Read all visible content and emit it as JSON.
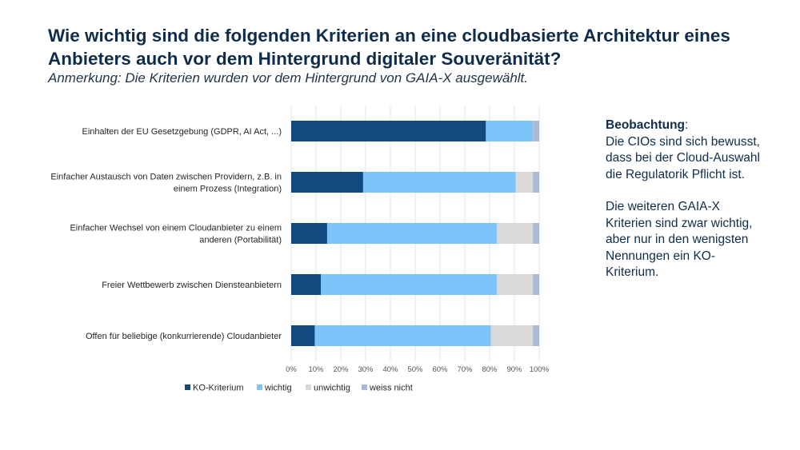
{
  "title": "Wie wichtig sind die folgenden Kriterien an eine cloudbasierte Architektur eines Anbieters auch vor dem Hintergrund digitaler Souveränität?",
  "subtitle": "Anmerkung: Die Kriterien wurden vor dem Hintergrund von GAIA-X ausgewählt.",
  "observation": {
    "heading": "Beobachtung",
    "colon": ":",
    "text1": "Die CIOs sind sich bewusst, dass bei der Cloud-Auswahl die Regulatorik Pflicht ist.",
    "text2": "Die weiteren GAIA-X Kriterien sind zwar wichtig, aber nur in den wenigsten Nennungen ein KO-Kriterium."
  },
  "chart_data": {
    "type": "bar",
    "orientation": "horizontal",
    "stacked": "percent",
    "categories": [
      [
        "Einhalten der EU Gesetzgebung (GDPR, AI Act, ...)"
      ],
      [
        "Einfacher Austausch von Daten zwischen Providern, z.B. in",
        "einem Prozess (Integration)"
      ],
      [
        "Einfacher Wechsel von einem Cloudanbieter zu einem",
        "anderen (Portabilität)"
      ],
      [
        "Freier Wettbewerb zwischen Diensteanbietern"
      ],
      [
        "Offen für beliebige (konkurrierende) Cloudanbieter"
      ]
    ],
    "series": [
      {
        "name": "KO-Kriterium",
        "color": "#114a7e",
        "values": [
          78.5,
          29,
          14.5,
          12,
          9.5
        ]
      },
      {
        "name": "wichtig",
        "color": "#7dc4fb",
        "values": [
          19,
          61.5,
          68.5,
          71,
          71
        ]
      },
      {
        "name": "unwichtig",
        "color": "#d9d9d9",
        "values": [
          0,
          7,
          14.5,
          14.5,
          17
        ]
      },
      {
        "name": "weiss nicht",
        "color": "#a9b9d6",
        "values": [
          2.5,
          2.5,
          2.5,
          2.5,
          2.5
        ]
      }
    ],
    "xticks": [
      "0%",
      "10%",
      "20%",
      "30%",
      "40%",
      "50%",
      "60%",
      "70%",
      "80%",
      "90%",
      "100%"
    ],
    "xlim": [
      0,
      100
    ],
    "grid": true,
    "legend": "bottom"
  }
}
